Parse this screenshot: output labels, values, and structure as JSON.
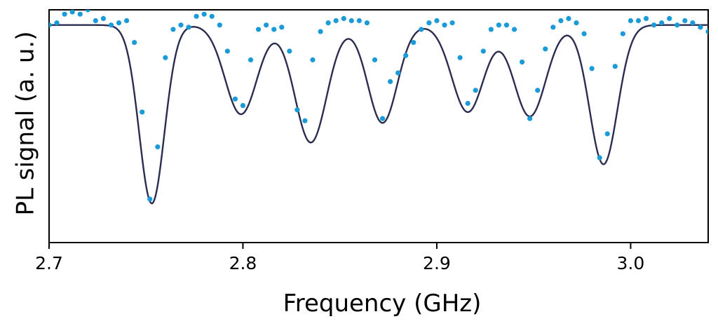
{
  "chart_data": {
    "type": "scatter",
    "title": "",
    "xlabel": "Frequency (GHz)",
    "ylabel": "PL signal (a. u.)",
    "xlim": [
      2.7,
      3.04
    ],
    "ylim": [
      0.0,
      1.07
    ],
    "x_ticks": [
      2.7,
      2.8,
      2.9,
      3.0
    ],
    "x_tick_labels": [
      "2.7",
      "2.8",
      "2.9",
      "3.0"
    ],
    "y_ticks_visible": false,
    "grid": false,
    "legend": "none",
    "colors": {
      "points": "#1a9bd7",
      "fit_line": "#2b2d50",
      "axes": "#000000"
    },
    "series": [
      {
        "kind": "scatter",
        "x": [
          2.7,
          2.704,
          2.708,
          2.712,
          2.716,
          2.72,
          2.724,
          2.728,
          2.732,
          2.736,
          2.74,
          2.744,
          2.748,
          2.752,
          2.756,
          2.76,
          2.764,
          2.768,
          2.772,
          2.776,
          2.78,
          2.784,
          2.788,
          2.792,
          2.796,
          2.8,
          2.804,
          2.808,
          2.812,
          2.816,
          2.82,
          2.824,
          2.828,
          2.832,
          2.836,
          2.84,
          2.844,
          2.848,
          2.852,
          2.856,
          2.86,
          2.864,
          2.868,
          2.872,
          2.876,
          2.88,
          2.884,
          2.888,
          2.892,
          2.896,
          2.9,
          2.904,
          2.908,
          2.912,
          2.916,
          2.92,
          2.924,
          2.928,
          2.932,
          2.936,
          2.94,
          2.944,
          2.948,
          2.952,
          2.956,
          2.96,
          2.964,
          2.968,
          2.972,
          2.976,
          2.98,
          2.984,
          2.988,
          2.992,
          2.996,
          3.0,
          3.004,
          3.008,
          3.012,
          3.016,
          3.02,
          3.024,
          3.028,
          3.032,
          3.036,
          3.04
        ],
        "y": [
          1.0,
          1.01,
          1.05,
          1.06,
          1.05,
          1.07,
          1.02,
          1.03,
          1.0,
          1.01,
          1.02,
          0.92,
          0.6,
          0.2,
          0.44,
          0.85,
          0.98,
          1.0,
          0.99,
          1.04,
          1.05,
          1.04,
          1.0,
          0.88,
          0.66,
          0.63,
          0.84,
          0.98,
          1.0,
          0.98,
          0.99,
          0.88,
          0.61,
          0.56,
          0.84,
          0.97,
          1.01,
          1.02,
          1.03,
          1.02,
          1.02,
          1.01,
          0.84,
          0.57,
          0.74,
          0.78,
          0.86,
          0.92,
          0.98,
          1.01,
          1.02,
          1.0,
          1.01,
          0.85,
          0.64,
          0.7,
          0.88,
          0.98,
          1.0,
          1.0,
          0.98,
          0.83,
          0.57,
          0.7,
          0.89,
          0.99,
          1.02,
          1.03,
          1.01,
          0.96,
          0.8,
          0.39,
          0.5,
          0.81,
          0.96,
          1.02,
          1.02,
          1.03,
          1.0,
          1.01,
          1.03,
          1.0,
          1.02,
          1.01,
          0.99,
          0.97
        ]
      },
      {
        "kind": "fit",
        "baseline": 1.0,
        "dips": [
          {
            "center": 2.753,
            "depth": 0.82,
            "width": 0.0065
          },
          {
            "center": 2.799,
            "depth": 0.41,
            "width": 0.0082
          },
          {
            "center": 2.835,
            "depth": 0.54,
            "width": 0.0082
          },
          {
            "center": 2.872,
            "depth": 0.45,
            "width": 0.0076
          },
          {
            "center": 2.916,
            "depth": 0.4,
            "width": 0.0082
          },
          {
            "center": 2.948,
            "depth": 0.42,
            "width": 0.0082
          },
          {
            "center": 2.986,
            "depth": 0.64,
            "width": 0.0072
          }
        ]
      }
    ]
  }
}
